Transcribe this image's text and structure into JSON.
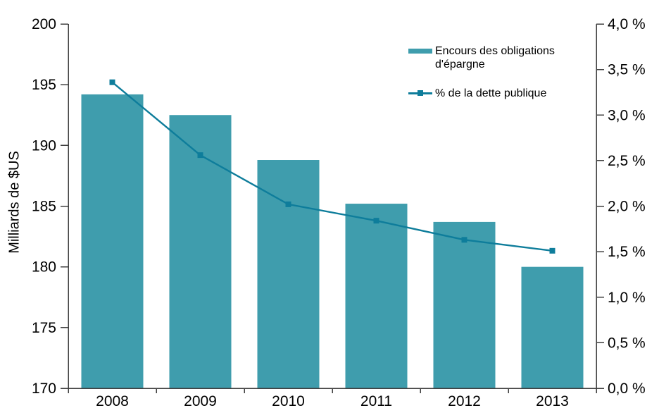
{
  "chart_data": {
    "type": "bar",
    "subtype": "bar+line dual-axis",
    "categories": [
      "2008",
      "2009",
      "2010",
      "2011",
      "2012",
      "2013"
    ],
    "series": [
      {
        "name": "Encours des obligations d'épargne",
        "type": "bar",
        "axis": "left",
        "values": [
          194.2,
          192.5,
          188.8,
          185.2,
          183.7,
          180.0
        ]
      },
      {
        "name": "% de la dette publique",
        "type": "line",
        "axis": "right",
        "marker": "square",
        "values": [
          3.36,
          2.56,
          2.02,
          1.84,
          1.63,
          1.51
        ]
      }
    ],
    "title": "",
    "xlabel": "",
    "left_axis": {
      "label": "Milliards de $US",
      "min": 170,
      "max": 200,
      "tick_values": [
        170,
        175,
        180,
        185,
        190,
        195,
        200
      ],
      "tick_labels": [
        "170",
        "175",
        "180",
        "185",
        "190",
        "195",
        "200"
      ]
    },
    "right_axis": {
      "label": "",
      "min": 0,
      "max": 4,
      "tick_values": [
        0,
        0.5,
        1,
        1.5,
        2,
        2.5,
        3,
        3.5,
        4
      ],
      "tick_labels": [
        "0,0 %",
        "0,5 %",
        "1,0 %",
        "1,5 %",
        "2,0 %",
        "2,5 %",
        "3,0 %",
        "3,5 %",
        "4,0 %"
      ]
    },
    "legend": {
      "position": "upper-right-inside",
      "items": [
        {
          "label": "Encours des obligations d'épargne",
          "swatch": "bar"
        },
        {
          "label": "% de la dette publique",
          "swatch": "line-square-marker"
        }
      ]
    },
    "grid": "off",
    "colors": {
      "bar": "#3F9DAD",
      "line": "#0E7D9B",
      "axis": "#3F3F3F",
      "text": "#000000",
      "background": "#FFFFFF"
    }
  }
}
